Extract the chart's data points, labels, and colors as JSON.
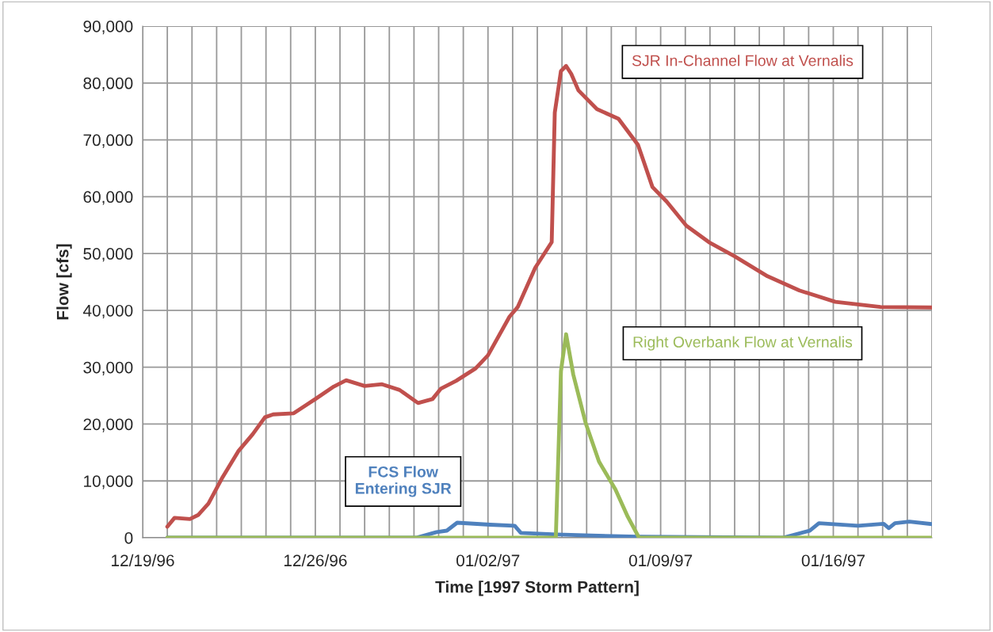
{
  "chart_data": {
    "type": "line",
    "xlabel": "Time [1997 Storm Pattern]",
    "ylabel": "Flow [cfs]",
    "xlim": [
      "1996-12-19",
      "1997-01-20"
    ],
    "xticks": [
      {
        "value": "1996-12-19",
        "label": "12/19/96"
      },
      {
        "value": "1996-12-20",
        "label": null
      },
      {
        "value": "1996-12-21",
        "label": null
      },
      {
        "value": "1996-12-22",
        "label": null
      },
      {
        "value": "1996-12-23",
        "label": null
      },
      {
        "value": "1996-12-24",
        "label": null
      },
      {
        "value": "1996-12-25",
        "label": null
      },
      {
        "value": "1996-12-26",
        "label": "12/26/96"
      },
      {
        "value": "1996-12-27",
        "label": null
      },
      {
        "value": "1996-12-28",
        "label": null
      },
      {
        "value": "1996-12-29",
        "label": null
      },
      {
        "value": "1996-12-30",
        "label": null
      },
      {
        "value": "1996-12-31",
        "label": null
      },
      {
        "value": "1997-01-01",
        "label": null
      },
      {
        "value": "1997-01-02",
        "label": "01/02/97"
      },
      {
        "value": "1997-01-03",
        "label": null
      },
      {
        "value": "1997-01-04",
        "label": null
      },
      {
        "value": "1997-01-05",
        "label": null
      },
      {
        "value": "1997-01-06",
        "label": null
      },
      {
        "value": "1997-01-07",
        "label": null
      },
      {
        "value": "1997-01-08",
        "label": null
      },
      {
        "value": "1997-01-09",
        "label": "01/09/97"
      },
      {
        "value": "1997-01-10",
        "label": null
      },
      {
        "value": "1997-01-11",
        "label": null
      },
      {
        "value": "1997-01-12",
        "label": null
      },
      {
        "value": "1997-01-13",
        "label": null
      },
      {
        "value": "1997-01-14",
        "label": null
      },
      {
        "value": "1997-01-15",
        "label": null
      },
      {
        "value": "1997-01-16",
        "label": "01/16/97"
      },
      {
        "value": "1997-01-17",
        "label": null
      },
      {
        "value": "1997-01-18",
        "label": null
      },
      {
        "value": "1997-01-19",
        "label": null
      },
      {
        "value": "1997-01-20",
        "label": null
      }
    ],
    "ylim": [
      0,
      90000
    ],
    "yticks": [
      0,
      {
        "value": 10000,
        "label": "10,000"
      },
      {
        "value": 20000,
        "label": "20,000"
      },
      {
        "value": 30000,
        "label": "30,000"
      },
      {
        "value": 40000,
        "label": "40,000"
      },
      {
        "value": 50000,
        "label": "50,000"
      },
      {
        "value": 60000,
        "label": "60,000"
      },
      {
        "value": 70000,
        "label": "70,000"
      },
      {
        "value": 80000,
        "label": "80,000"
      },
      {
        "value": 90000,
        "label": "90,000"
      }
    ],
    "grid": true,
    "line_style": "solid",
    "marker": "none",
    "series": [
      {
        "name": "SJR In-Channel Flow at Vernalis",
        "color": "#c0504d",
        "x": [
          "1996-12-20T00:00",
          "1996-12-20T07:00",
          "1996-12-20T22:00",
          "1996-12-21T06:00",
          "1996-12-21T16:00",
          "1996-12-22T05:00",
          "1996-12-22T21:00",
          "1996-12-23T11:00",
          "1996-12-23T23:00",
          "1996-12-24T07:00",
          "1996-12-25T03:00",
          "1996-12-26T00:00",
          "1996-12-26T18:00",
          "1996-12-27T06:00",
          "1996-12-28T00:00",
          "1996-12-28T17:00",
          "1996-12-29T10:00",
          "1996-12-30T04:00",
          "1996-12-30T18:00",
          "1996-12-31T02:00",
          "1996-12-31T17:00",
          "1997-01-01T12:00",
          "1997-01-02T00:00",
          "1997-01-02T21:00",
          "1997-01-03T05:00",
          "1997-01-03T22:00",
          "1997-01-04T14:00",
          "1997-01-04T17:00",
          "1997-01-04T23:00",
          "1997-01-05T04:00",
          "1997-01-05T09:00",
          "1997-01-05T16:00",
          "1997-01-06T10:00",
          "1997-01-07T07:00",
          "1997-01-08T02:00",
          "1997-01-08T16:00",
          "1997-01-09T06:00",
          "1997-01-10T01:00",
          "1997-01-10T23:00",
          "1997-01-12T00:00",
          "1997-01-13T08:00",
          "1997-01-14T15:00",
          "1997-01-16T02:00",
          "1997-01-17T22:00",
          "1997-01-20T00:00"
        ],
        "values": [
          1950,
          3500,
          3300,
          4000,
          6000,
          10400,
          15200,
          18200,
          21200,
          21700,
          21900,
          24400,
          26600,
          27700,
          26700,
          27000,
          26000,
          23700,
          24400,
          26200,
          27600,
          29800,
          32100,
          38900,
          40600,
          47500,
          52000,
          74800,
          82100,
          83000,
          81600,
          78700,
          75400,
          73700,
          69100,
          61700,
          59100,
          54900,
          52000,
          49500,
          46000,
          43500,
          41500,
          40600,
          40500
        ]
      },
      {
        "name": "Right Overbank Flow at Vernalis",
        "color": "#9bbb59",
        "x": [
          "1996-12-20T00:00",
          "1997-01-04T18:00",
          "1997-01-04T23:00",
          "1997-01-05T04:00",
          "1997-01-05T11:00",
          "1997-01-05T23:00",
          "1997-01-06T12:00",
          "1997-01-07T04:00",
          "1997-01-07T16:00",
          "1997-01-08T03:00",
          "1997-01-20T00:00"
        ],
        "values": [
          0,
          0,
          29300,
          35800,
          28700,
          20200,
          13400,
          8500,
          3700,
          0,
          0
        ]
      },
      {
        "name": "FCS Flow\nEntering SJR",
        "color": "#4f81bd",
        "x": [
          "1996-12-20T00:00",
          "1996-12-30T02:00",
          "1996-12-30T22:00",
          "1996-12-31T08:00",
          "1996-12-31T18:00",
          "1997-01-02T02:00",
          "1997-01-03T02:00",
          "1997-01-03T08:00",
          "1997-01-04T19:00",
          "1997-01-08T02:00",
          "1997-01-13T23:00",
          "1997-01-15T01:00",
          "1997-01-15T10:00",
          "1997-01-17T00:00",
          "1997-01-18T01:00",
          "1997-01-18T06:00",
          "1997-01-18T12:00",
          "1997-01-19T02:00",
          "1997-01-20T00:00"
        ],
        "values": [
          0,
          0,
          1000,
          1250,
          2650,
          2300,
          2100,
          850,
          570,
          170,
          0,
          1250,
          2560,
          2100,
          2450,
          1700,
          2560,
          2840,
          2400
        ]
      }
    ]
  }
}
